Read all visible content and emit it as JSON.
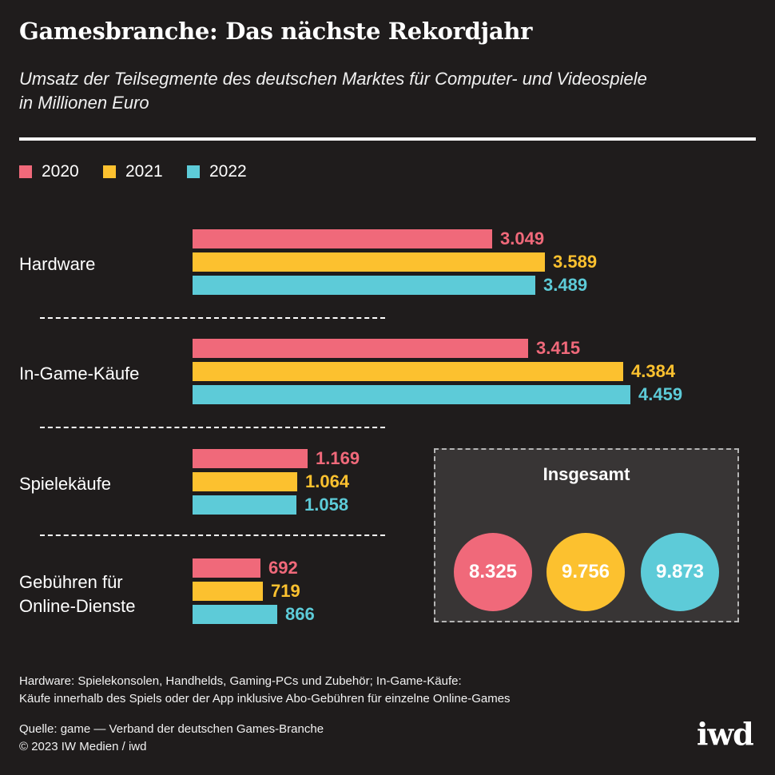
{
  "header": {
    "title": "Gamesbranche: Das nächste Rekordjahr",
    "subtitle_line1": "Umsatz der Teilsegmente des deutschen Marktes für Computer- und Videospiele",
    "subtitle_line2": "in Millionen Euro"
  },
  "colors": {
    "2020": "#f0697a",
    "2021": "#fcc12f",
    "2022": "#5dcbd8",
    "background": "#1f1c1c"
  },
  "chart_data": {
    "type": "bar",
    "orientation": "horizontal",
    "title": "Gamesbranche: Das nächste Rekordjahr",
    "subtitle": "Umsatz der Teilsegmente des deutschen Marktes für Computer- und Videospiele in Millionen Euro",
    "categories": [
      "Hardware",
      "In-Game-Käufe",
      "Spielekäufe",
      "Gebühren für Online-Dienste"
    ],
    "series": [
      {
        "name": "2020",
        "values": [
          3049,
          3415,
          1169,
          692
        ],
        "labels": [
          "3.049",
          "3.415",
          "1.169",
          "692"
        ]
      },
      {
        "name": "2021",
        "values": [
          3589,
          4384,
          1064,
          719
        ],
        "labels": [
          "3.589",
          "4.384",
          "1.064",
          "719"
        ]
      },
      {
        "name": "2022",
        "values": [
          3489,
          4459,
          1058,
          866
        ],
        "labels": [
          "3.489",
          "4.459",
          "1.058",
          "866"
        ]
      }
    ],
    "xlim": [
      0,
      4700
    ],
    "legend": "top-left",
    "totals": {
      "title": "Insgesamt",
      "values": [
        {
          "year": "2020",
          "value": 8325,
          "label": "8.325"
        },
        {
          "year": "2021",
          "value": 9756,
          "label": "9.756"
        },
        {
          "year": "2022",
          "value": 9873,
          "label": "9.873"
        }
      ]
    }
  },
  "labels": {
    "cat0": "Hardware",
    "cat1": "In-Game-Käufe",
    "cat2": "Spielekäufe",
    "cat3_line1": "Gebühren für",
    "cat3_line2": "Online-Dienste"
  },
  "footer": {
    "note_line1": "Hardware: Spielekonsolen, Handhelds, Gaming-PCs und Zubehör; In-Game-Käufe:",
    "note_line2": "Käufe innerhalb des Spiels oder der App inklusive Abo-Gebühren für einzelne Online-Games",
    "source": "Quelle: game —  Verband der deutschen Games-Branche",
    "copyright": "© 2023 IW Medien / iwd",
    "logo": "iwd"
  }
}
